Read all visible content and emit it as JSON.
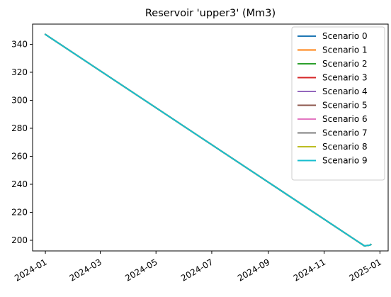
{
  "chart_data": {
    "type": "line",
    "title": "Reservoir 'upper3' (Mm3)",
    "xlabel": "",
    "ylabel": "",
    "x_type": "date",
    "x_ticks": [
      "2024-01",
      "2024-03",
      "2024-05",
      "2024-07",
      "2024-09",
      "2024-11",
      "2025-01"
    ],
    "y_ticks": [
      200,
      220,
      240,
      260,
      280,
      300,
      320,
      340
    ],
    "xlim": [
      "2023-12-18",
      "2025-01-10"
    ],
    "ylim": [
      192.4,
      354.4
    ],
    "grid": false,
    "legend_position": "top-right",
    "colors": [
      "#1f77b4",
      "#ff7f0e",
      "#2ca02c",
      "#d62728",
      "#9467bd",
      "#8c564b",
      "#e377c2",
      "#7f7f7f",
      "#bcbd22",
      "#17becf"
    ],
    "series": [
      {
        "name": "Scenario 0",
        "x": [
          "2024-01-01",
          "2024-12-15",
          "2024-12-21",
          "2024-12-22"
        ],
        "y": [
          347,
          196,
          196.5,
          197
        ]
      },
      {
        "name": "Scenario 1",
        "x": [
          "2024-01-01",
          "2024-12-15",
          "2024-12-21",
          "2024-12-22"
        ],
        "y": [
          347,
          196,
          196.5,
          197
        ]
      },
      {
        "name": "Scenario 2",
        "x": [
          "2024-01-01",
          "2024-12-15",
          "2024-12-21",
          "2024-12-22"
        ],
        "y": [
          347,
          196,
          196.5,
          197
        ]
      },
      {
        "name": "Scenario 3",
        "x": [
          "2024-01-01",
          "2024-12-15",
          "2024-12-21",
          "2024-12-22"
        ],
        "y": [
          347,
          196,
          196.5,
          197
        ]
      },
      {
        "name": "Scenario 4",
        "x": [
          "2024-01-01",
          "2024-12-15",
          "2024-12-21",
          "2024-12-22"
        ],
        "y": [
          347,
          196,
          196.5,
          197
        ]
      },
      {
        "name": "Scenario 5",
        "x": [
          "2024-01-01",
          "2024-12-15",
          "2024-12-21",
          "2024-12-22"
        ],
        "y": [
          347,
          196,
          196.5,
          197
        ]
      },
      {
        "name": "Scenario 6",
        "x": [
          "2024-01-01",
          "2024-12-15",
          "2024-12-21",
          "2024-12-22"
        ],
        "y": [
          347,
          196,
          196.5,
          197
        ]
      },
      {
        "name": "Scenario 7",
        "x": [
          "2024-01-01",
          "2024-12-15",
          "2024-12-21",
          "2024-12-22"
        ],
        "y": [
          347,
          196,
          196.5,
          197
        ]
      },
      {
        "name": "Scenario 8",
        "x": [
          "2024-01-01",
          "2024-12-15",
          "2024-12-21",
          "2024-12-22"
        ],
        "y": [
          347,
          196,
          196.5,
          197
        ]
      },
      {
        "name": "Scenario 9",
        "x": [
          "2024-01-01",
          "2024-12-15",
          "2024-12-21",
          "2024-12-22"
        ],
        "y": [
          347,
          196,
          196.5,
          197
        ]
      }
    ]
  }
}
